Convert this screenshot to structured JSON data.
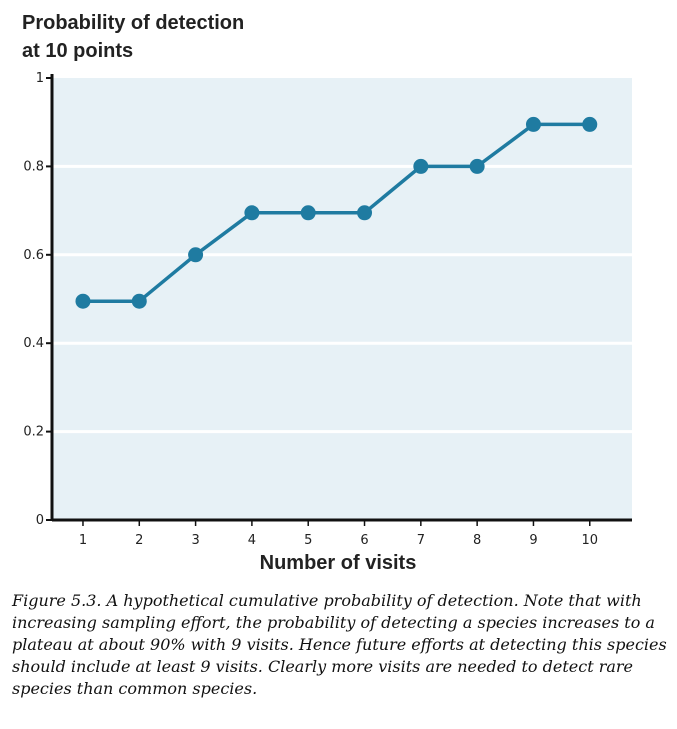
{
  "chart_data": {
    "type": "line",
    "title_lines": [
      "Probability of detection",
      "at 10 points"
    ],
    "xlabel": "Number of visits",
    "ylabel": "",
    "x": [
      1,
      2,
      3,
      4,
      5,
      6,
      7,
      8,
      9,
      10
    ],
    "y": [
      0.495,
      0.495,
      0.6,
      0.695,
      0.695,
      0.695,
      0.8,
      0.8,
      0.895,
      0.895
    ],
    "x_ticks": [
      "1",
      "2",
      "3",
      "4",
      "5",
      "6",
      "7",
      "8",
      "9",
      "10"
    ],
    "y_ticks": [
      0,
      0.2,
      0.4,
      0.6,
      0.8,
      1
    ],
    "y_tick_labels": [
      "0",
      "0.2",
      "0.4",
      "0.6",
      "0.8",
      "1"
    ],
    "ylim": [
      0,
      1
    ],
    "grid": true,
    "legend": "none",
    "colors": {
      "line": "#1f7ba1",
      "plot_bg": "#e7f1f6",
      "grid": "#ffffff",
      "axis": "#111111"
    }
  },
  "caption": "Figure 5.3. A hypothetical cumulative probability of detection. Note that with increasing sampling effort, the probability of detecting a species increases to a plateau at about 90% with 9 visits. Hence future efforts at detecting this species should include at least 9 visits. Clearly more visits are needed to detect rare species than common species."
}
